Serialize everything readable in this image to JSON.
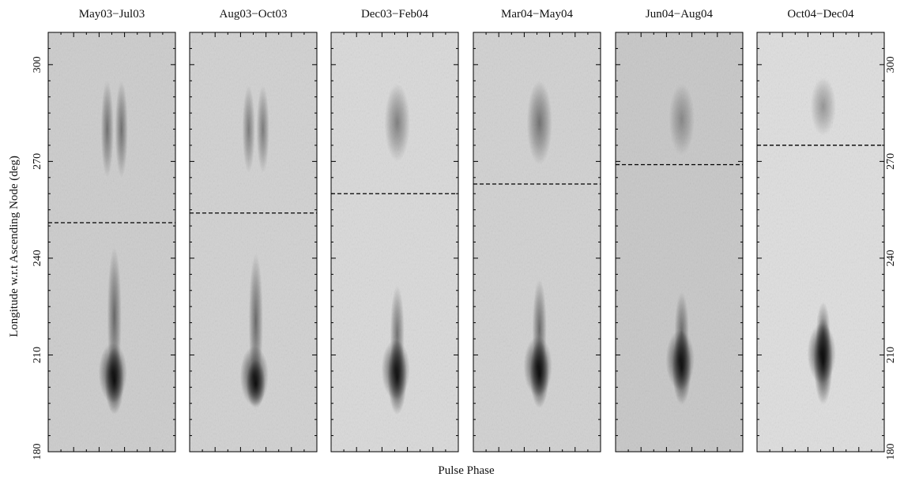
{
  "chart_data": {
    "type": "heatmap",
    "colormap": "grayscale (darker = brighter pulse emission)",
    "xlabel": "Pulse Phase",
    "ylabel": "Longitude w.r.t Ascending Node (deg)",
    "ylim": [
      180,
      310
    ],
    "yticks": [
      180,
      210,
      240,
      270,
      300
    ],
    "y_tick_labels_on": [
      "left",
      "right"
    ],
    "panels": [
      {
        "title": "May03−Jul03",
        "background_gray": 0.8,
        "dashed_line_longitude": 251,
        "lower_component": {
          "peak_longitude": 202,
          "extent": [
            193,
            242
          ],
          "peak_intensity": 1.0
        },
        "upper_component": {
          "peak_longitude": 280,
          "extent": [
            262,
            292
          ],
          "peak_intensity": 0.35,
          "double_peaked": true
        }
      },
      {
        "title": "Aug03−Oct03",
        "background_gray": 0.82,
        "dashed_line_longitude": 254,
        "lower_component": {
          "peak_longitude": 201,
          "extent": [
            195,
            240
          ],
          "peak_intensity": 1.0
        },
        "upper_component": {
          "peak_longitude": 280,
          "extent": [
            265,
            292
          ],
          "peak_intensity": 0.3,
          "double_peaked": true
        }
      },
      {
        "title": "Dec03−Feb04",
        "background_gray": 0.85,
        "dashed_line_longitude": 260,
        "lower_component": {
          "peak_longitude": 203,
          "extent": [
            193,
            230
          ],
          "peak_intensity": 0.95
        },
        "upper_component": {
          "peak_longitude": 282,
          "extent": [
            268,
            292
          ],
          "peak_intensity": 0.3,
          "double_peaked": false
        }
      },
      {
        "title": "Mar04−May04",
        "background_gray": 0.82,
        "dashed_line_longitude": 263,
        "lower_component": {
          "peak_longitude": 204,
          "extent": [
            195,
            232
          ],
          "peak_intensity": 1.0
        },
        "upper_component": {
          "peak_longitude": 282,
          "extent": [
            266,
            292
          ],
          "peak_intensity": 0.35,
          "double_peaked": false
        }
      },
      {
        "title": "Jun04−Aug04",
        "background_gray": 0.78,
        "dashed_line_longitude": 269,
        "lower_component": {
          "peak_longitude": 206,
          "extent": [
            196,
            228
          ],
          "peak_intensity": 0.95
        },
        "upper_component": {
          "peak_longitude": 283,
          "extent": [
            272,
            294
          ],
          "peak_intensity": 0.2,
          "double_peaked": false
        }
      },
      {
        "title": "Oct04−Dec04",
        "background_gray": 0.87,
        "dashed_line_longitude": 275,
        "lower_component": {
          "peak_longitude": 208,
          "extent": [
            196,
            225
          ],
          "peak_intensity": 1.0
        },
        "upper_component": {
          "peak_longitude": 287,
          "extent": [
            278,
            296
          ],
          "peak_intensity": 0.2,
          "double_peaked": false
        }
      }
    ]
  }
}
